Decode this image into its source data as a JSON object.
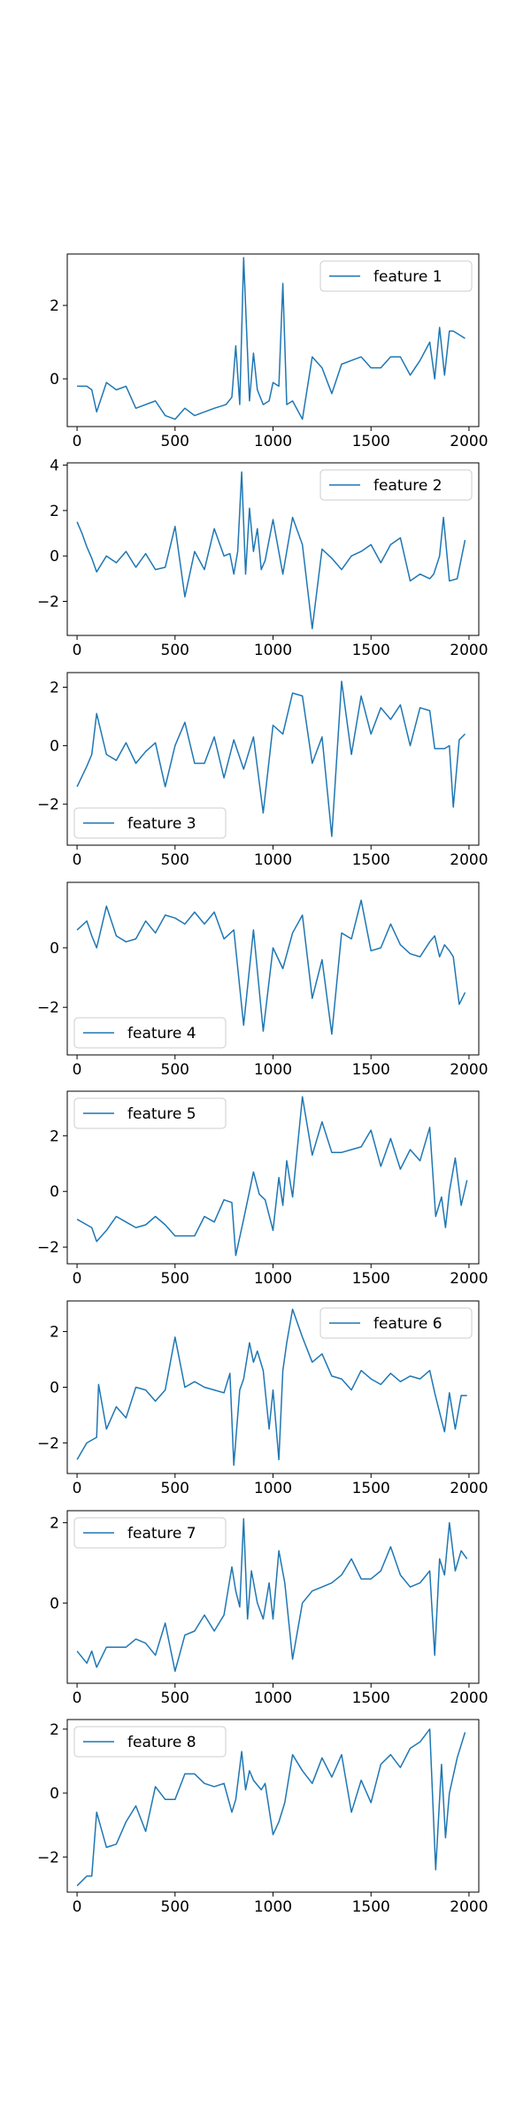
{
  "colors": {
    "line": "#1f77b4",
    "axes": "#000000",
    "legend_border": "#cccccc",
    "background": "#ffffff"
  },
  "chart_data": [
    {
      "type": "line",
      "legend": {
        "label": "feature 1",
        "loc": "upper right"
      },
      "xticks": [
        0,
        500,
        1000,
        1500,
        2000
      ],
      "yticks": [
        0,
        2
      ],
      "xlim": [
        -50,
        2050
      ],
      "ylim": [
        -1.3,
        3.4
      ],
      "grid": false,
      "series": [
        {
          "name": "feature 1",
          "x": [
            0,
            50,
            75,
            100,
            150,
            200,
            250,
            300,
            400,
            450,
            500,
            550,
            600,
            650,
            700,
            760,
            790,
            810,
            830,
            850,
            880,
            900,
            920,
            950,
            980,
            1000,
            1030,
            1050,
            1070,
            1100,
            1150,
            1200,
            1250,
            1300,
            1350,
            1400,
            1450,
            1500,
            1550,
            1600,
            1650,
            1700,
            1750,
            1800,
            1825,
            1850,
            1875,
            1900,
            1920,
            1950,
            1980
          ],
          "y": [
            -0.2,
            -0.2,
            -0.3,
            -0.9,
            -0.1,
            -0.3,
            -0.2,
            -0.8,
            -0.6,
            -1.0,
            -1.1,
            -0.8,
            -1.0,
            -0.9,
            -0.8,
            -0.7,
            -0.5,
            0.9,
            -0.7,
            3.3,
            -0.6,
            0.7,
            -0.3,
            -0.7,
            -0.6,
            -0.1,
            -0.2,
            2.6,
            -0.7,
            -0.6,
            -1.1,
            0.6,
            0.3,
            -0.4,
            0.4,
            0.5,
            0.6,
            0.3,
            0.3,
            0.6,
            0.6,
            0.1,
            0.5,
            1.0,
            0.0,
            1.4,
            0.1,
            1.3,
            1.3,
            1.2,
            1.1
          ]
        }
      ]
    },
    {
      "type": "line",
      "legend": {
        "label": "feature 2",
        "loc": "upper right"
      },
      "xticks": [
        0,
        500,
        1000,
        1500,
        2000
      ],
      "yticks": [
        -2,
        0,
        2,
        4
      ],
      "xlim": [
        -50,
        2050
      ],
      "ylim": [
        -3.5,
        4.1
      ],
      "grid": false,
      "series": [
        {
          "name": "feature 2",
          "x": [
            0,
            25,
            50,
            75,
            100,
            150,
            200,
            250,
            300,
            350,
            400,
            450,
            500,
            550,
            600,
            650,
            700,
            750,
            780,
            800,
            820,
            840,
            860,
            880,
            900,
            920,
            940,
            960,
            1000,
            1050,
            1100,
            1150,
            1200,
            1250,
            1300,
            1350,
            1400,
            1450,
            1500,
            1550,
            1600,
            1650,
            1700,
            1750,
            1800,
            1820,
            1850,
            1870,
            1900,
            1940,
            1980
          ],
          "y": [
            1.5,
            1.0,
            0.4,
            -0.1,
            -0.7,
            0.0,
            -0.3,
            0.2,
            -0.5,
            0.1,
            -0.6,
            -0.5,
            1.3,
            -1.8,
            0.2,
            -0.6,
            1.2,
            0.0,
            0.1,
            -0.8,
            0.2,
            3.7,
            -0.8,
            2.1,
            0.2,
            1.2,
            -0.6,
            -0.2,
            1.6,
            -0.8,
            1.7,
            0.5,
            -3.2,
            0.3,
            -0.1,
            -0.6,
            0.0,
            0.2,
            0.5,
            -0.3,
            0.5,
            0.8,
            -1.1,
            -0.8,
            -1.0,
            -0.8,
            0.0,
            1.7,
            -1.1,
            -1.0,
            0.7
          ]
        }
      ]
    },
    {
      "type": "line",
      "legend": {
        "label": "feature 3",
        "loc": "lower left"
      },
      "xticks": [
        0,
        500,
        1000,
        1500,
        2000
      ],
      "yticks": [
        -2,
        0,
        2
      ],
      "xlim": [
        -50,
        2050
      ],
      "ylim": [
        -3.4,
        2.5
      ],
      "grid": false,
      "series": [
        {
          "name": "feature 3",
          "x": [
            0,
            50,
            75,
            100,
            150,
            200,
            250,
            300,
            350,
            400,
            450,
            500,
            550,
            600,
            650,
            700,
            750,
            800,
            850,
            900,
            950,
            1000,
            1050,
            1100,
            1150,
            1200,
            1250,
            1300,
            1350,
            1400,
            1450,
            1500,
            1550,
            1600,
            1650,
            1700,
            1750,
            1800,
            1825,
            1850,
            1875,
            1900,
            1920,
            1950,
            1980
          ],
          "y": [
            -1.4,
            -0.7,
            -0.3,
            1.1,
            -0.3,
            -0.5,
            0.1,
            -0.6,
            -0.2,
            0.1,
            -1.4,
            0.0,
            0.8,
            -0.6,
            -0.6,
            0.3,
            -1.1,
            0.2,
            -0.8,
            0.3,
            -2.3,
            0.7,
            0.4,
            1.8,
            1.7,
            -0.6,
            0.3,
            -3.1,
            2.2,
            -0.3,
            1.7,
            0.4,
            1.3,
            0.9,
            1.4,
            0.0,
            1.3,
            1.2,
            -0.1,
            -0.1,
            -0.1,
            0.0,
            -2.1,
            0.2,
            0.4
          ]
        }
      ]
    },
    {
      "type": "line",
      "legend": {
        "label": "feature 4",
        "loc": "lower left"
      },
      "xticks": [
        0,
        500,
        1000,
        1500,
        2000
      ],
      "yticks": [
        -2,
        0
      ],
      "xlim": [
        -50,
        2050
      ],
      "ylim": [
        -3.6,
        2.2
      ],
      "grid": false,
      "series": [
        {
          "name": "feature 4",
          "x": [
            0,
            50,
            75,
            100,
            150,
            200,
            250,
            300,
            350,
            400,
            450,
            500,
            550,
            600,
            650,
            700,
            750,
            800,
            850,
            900,
            950,
            1000,
            1050,
            1100,
            1150,
            1200,
            1250,
            1300,
            1350,
            1400,
            1450,
            1500,
            1550,
            1600,
            1650,
            1700,
            1750,
            1800,
            1825,
            1850,
            1875,
            1900,
            1920,
            1950,
            1980
          ],
          "y": [
            0.6,
            0.9,
            0.4,
            0.0,
            1.4,
            0.4,
            0.2,
            0.3,
            0.9,
            0.5,
            1.1,
            1.0,
            0.8,
            1.2,
            0.8,
            1.2,
            0.3,
            0.6,
            -2.6,
            0.6,
            -2.8,
            0.0,
            -0.7,
            0.5,
            1.1,
            -1.7,
            -0.4,
            -2.9,
            0.5,
            0.3,
            1.6,
            -0.1,
            0.0,
            0.8,
            0.1,
            -0.2,
            -0.3,
            0.2,
            0.4,
            -0.3,
            0.1,
            -0.1,
            -0.3,
            -1.9,
            -1.5
          ]
        }
      ]
    },
    {
      "type": "line",
      "legend": {
        "label": "feature 5",
        "loc": "upper left"
      },
      "xticks": [
        0,
        500,
        1000,
        1500,
        2000
      ],
      "yticks": [
        -2,
        0,
        2
      ],
      "xlim": [
        -50,
        2050
      ],
      "ylim": [
        -2.6,
        3.6
      ],
      "grid": false,
      "series": [
        {
          "name": "feature 5",
          "x": [
            0,
            50,
            75,
            100,
            150,
            200,
            250,
            300,
            350,
            400,
            450,
            500,
            550,
            600,
            650,
            700,
            750,
            790,
            810,
            850,
            880,
            900,
            930,
            960,
            1000,
            1030,
            1050,
            1070,
            1100,
            1150,
            1200,
            1250,
            1300,
            1350,
            1400,
            1450,
            1500,
            1550,
            1600,
            1650,
            1700,
            1750,
            1800,
            1830,
            1860,
            1880,
            1900,
            1930,
            1960,
            1990
          ],
          "y": [
            -1.0,
            -1.2,
            -1.3,
            -1.8,
            -1.4,
            -0.9,
            -1.1,
            -1.3,
            -1.2,
            -0.9,
            -1.2,
            -1.6,
            -1.6,
            -1.6,
            -0.9,
            -1.1,
            -0.3,
            -0.4,
            -2.3,
            -1.0,
            0.0,
            0.7,
            -0.1,
            -0.3,
            -1.4,
            0.5,
            -0.5,
            1.1,
            -0.2,
            3.4,
            1.3,
            2.5,
            1.4,
            1.4,
            1.5,
            1.6,
            2.2,
            0.9,
            1.9,
            0.8,
            1.5,
            1.1,
            2.3,
            -0.9,
            -0.2,
            -1.3,
            0.0,
            1.2,
            -0.5,
            0.4
          ]
        }
      ]
    },
    {
      "type": "line",
      "legend": {
        "label": "feature 6",
        "loc": "upper right"
      },
      "xticks": [
        0,
        500,
        1000,
        1500,
        2000
      ],
      "yticks": [
        -2,
        0,
        2
      ],
      "xlim": [
        -50,
        2050
      ],
      "ylim": [
        -3.1,
        3.1
      ],
      "grid": false,
      "series": [
        {
          "name": "feature 6",
          "x": [
            0,
            50,
            100,
            110,
            150,
            200,
            250,
            300,
            350,
            400,
            450,
            500,
            550,
            600,
            650,
            700,
            750,
            780,
            800,
            830,
            850,
            880,
            900,
            920,
            950,
            980,
            1000,
            1030,
            1050,
            1070,
            1100,
            1150,
            1200,
            1250,
            1300,
            1350,
            1400,
            1450,
            1500,
            1550,
            1600,
            1650,
            1700,
            1750,
            1800,
            1825,
            1850,
            1875,
            1900,
            1930,
            1960,
            1990
          ],
          "y": [
            -2.6,
            -2.0,
            -1.8,
            0.1,
            -1.5,
            -0.7,
            -1.1,
            0.0,
            -0.1,
            -0.5,
            -0.1,
            1.8,
            0.0,
            0.2,
            0.0,
            -0.1,
            -0.2,
            0.5,
            -2.8,
            -0.1,
            0.3,
            1.6,
            0.9,
            1.3,
            0.6,
            -1.5,
            -0.1,
            -2.6,
            0.6,
            1.6,
            2.8,
            1.8,
            0.9,
            1.2,
            0.4,
            0.3,
            -0.1,
            0.6,
            0.3,
            0.1,
            0.5,
            0.2,
            0.4,
            0.3,
            0.6,
            -0.2,
            -0.9,
            -1.6,
            -0.2,
            -1.5,
            -0.3,
            -0.3
          ]
        }
      ]
    },
    {
      "type": "line",
      "legend": {
        "label": "feature 7",
        "loc": "upper left"
      },
      "xticks": [
        0,
        500,
        1000,
        1500,
        2000
      ],
      "yticks": [
        0,
        2
      ],
      "xlim": [
        -50,
        2050
      ],
      "ylim": [
        -2.0,
        2.3
      ],
      "grid": false,
      "series": [
        {
          "name": "feature 7",
          "x": [
            0,
            50,
            75,
            100,
            150,
            200,
            250,
            300,
            350,
            400,
            450,
            500,
            550,
            600,
            650,
            700,
            750,
            790,
            810,
            830,
            850,
            870,
            890,
            920,
            950,
            980,
            1000,
            1030,
            1060,
            1100,
            1150,
            1200,
            1250,
            1300,
            1350,
            1400,
            1450,
            1500,
            1550,
            1600,
            1650,
            1700,
            1750,
            1800,
            1825,
            1850,
            1875,
            1900,
            1930,
            1960,
            1990
          ],
          "y": [
            -1.2,
            -1.5,
            -1.2,
            -1.6,
            -1.1,
            -1.1,
            -1.1,
            -0.9,
            -1.0,
            -1.3,
            -0.5,
            -1.7,
            -0.8,
            -0.7,
            -0.3,
            -0.7,
            -0.3,
            0.9,
            0.3,
            -0.1,
            2.1,
            -0.4,
            0.8,
            0.0,
            -0.4,
            0.5,
            -0.4,
            1.3,
            0.5,
            -1.4,
            0.0,
            0.3,
            0.4,
            0.5,
            0.7,
            1.1,
            0.6,
            0.6,
            0.8,
            1.4,
            0.7,
            0.4,
            0.5,
            0.8,
            -1.3,
            1.1,
            0.7,
            2.0,
            0.8,
            1.3,
            1.1
          ]
        }
      ]
    },
    {
      "type": "line",
      "legend": {
        "label": "feature 8",
        "loc": "upper left"
      },
      "xticks": [
        0,
        500,
        1000,
        1500,
        2000
      ],
      "yticks": [
        -2,
        0,
        2
      ],
      "xlim": [
        -50,
        2050
      ],
      "ylim": [
        -3.1,
        2.3
      ],
      "grid": false,
      "series": [
        {
          "name": "feature 8",
          "x": [
            0,
            50,
            75,
            100,
            150,
            200,
            250,
            300,
            350,
            400,
            450,
            500,
            550,
            600,
            650,
            700,
            750,
            790,
            810,
            840,
            860,
            880,
            900,
            940,
            960,
            1000,
            1030,
            1060,
            1100,
            1150,
            1200,
            1250,
            1300,
            1350,
            1400,
            1450,
            1500,
            1550,
            1600,
            1650,
            1700,
            1750,
            1800,
            1830,
            1860,
            1880,
            1900,
            1940,
            1980
          ],
          "y": [
            -2.9,
            -2.6,
            -2.6,
            -0.6,
            -1.7,
            -1.6,
            -0.9,
            -0.4,
            -1.2,
            0.2,
            -0.2,
            -0.2,
            0.6,
            0.6,
            0.3,
            0.2,
            0.3,
            -0.6,
            -0.2,
            1.3,
            0.1,
            0.7,
            0.4,
            0.1,
            0.3,
            -1.3,
            -0.9,
            -0.3,
            1.2,
            0.7,
            0.3,
            1.1,
            0.5,
            1.2,
            -0.6,
            0.4,
            -0.3,
            0.9,
            1.2,
            0.8,
            1.4,
            1.6,
            2.0,
            -2.4,
            0.9,
            -1.4,
            0.0,
            1.1,
            1.9
          ]
        }
      ]
    }
  ]
}
